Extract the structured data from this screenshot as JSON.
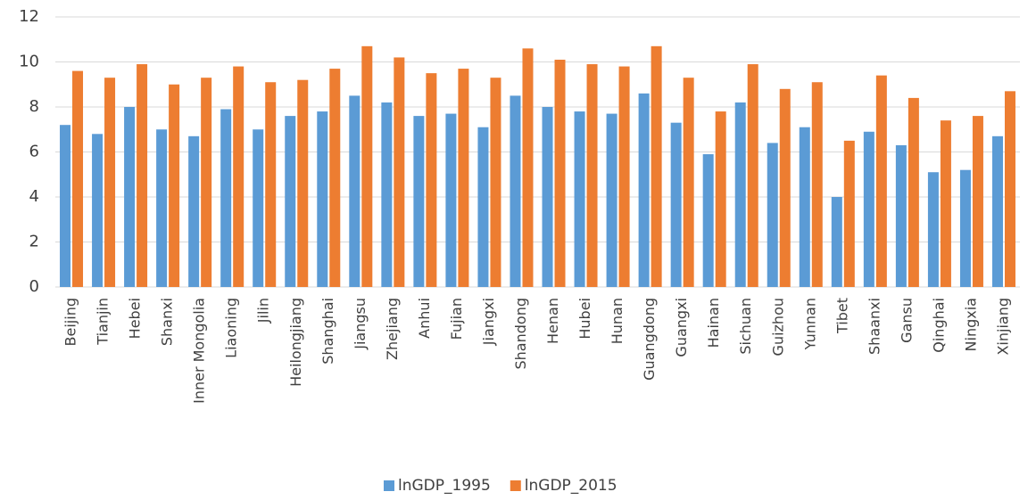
{
  "chart_data": {
    "type": "bar",
    "categories": [
      "Beijing",
      "Tianjin",
      "Hebei",
      "Shanxi",
      "Inner Mongolia",
      "Liaoning",
      "Jilin",
      "Heilongjiang",
      "Shanghai",
      "Jiangsu",
      "Zhejiang",
      "Anhui",
      "Fujian",
      "Jiangxi",
      "Shandong",
      "Henan",
      "Hubei",
      "Hunan",
      "Guangdong",
      "Guangxi",
      "Hainan",
      "Sichuan",
      "Guizhou",
      "Yunnan",
      "Tibet",
      "Shaanxi",
      "Gansu",
      "Qinghai",
      "Ningxia",
      "Xinjiang"
    ],
    "series": [
      {
        "name": "lnGDP_1995",
        "color": "#5b9bd5",
        "values": [
          7.2,
          6.8,
          8.0,
          7.0,
          6.7,
          7.9,
          7.0,
          7.6,
          7.8,
          8.5,
          8.2,
          7.6,
          7.7,
          7.1,
          8.5,
          8.0,
          7.8,
          7.7,
          8.6,
          7.3,
          5.9,
          8.2,
          6.4,
          7.1,
          4.0,
          6.9,
          6.3,
          5.1,
          5.2,
          6.7
        ]
      },
      {
        "name": "lnGDP_2015",
        "color": "#ed7d31",
        "values": [
          9.6,
          9.3,
          9.9,
          9.0,
          9.3,
          9.8,
          9.1,
          9.2,
          9.7,
          10.7,
          10.2,
          9.5,
          9.7,
          9.3,
          10.6,
          10.1,
          9.9,
          9.8,
          10.7,
          9.3,
          7.8,
          9.9,
          8.8,
          9.1,
          6.5,
          9.4,
          8.4,
          7.4,
          7.6,
          8.7
        ]
      }
    ],
    "ylim": [
      0,
      12
    ],
    "yticks": [
      0,
      2,
      4,
      6,
      8,
      10,
      12
    ],
    "grid": true,
    "legend": "bottom"
  }
}
